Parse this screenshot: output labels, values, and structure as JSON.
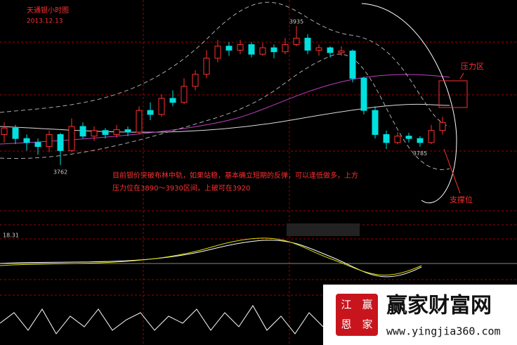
{
  "chart_data": {
    "type": "candlestick",
    "title": "天通银小时图",
    "subtitle": "2013.12.13",
    "categories": [
      null,
      null,
      null,
      null,
      null,
      null,
      null,
      null,
      null,
      null,
      null,
      null,
      null,
      null,
      null,
      null,
      null,
      null,
      null,
      null,
      null,
      null,
      null,
      null,
      null,
      null,
      null,
      null,
      null,
      null,
      null,
      null,
      null,
      null,
      null,
      null,
      null,
      null,
      null,
      null
    ],
    "candles": [
      {
        "open": 3800,
        "high": 3815,
        "low": 3790,
        "close": 3808
      },
      {
        "open": 3808,
        "high": 3812,
        "low": 3788,
        "close": 3795
      },
      {
        "open": 3795,
        "high": 3800,
        "low": 3780,
        "close": 3790
      },
      {
        "open": 3790,
        "high": 3795,
        "low": 3775,
        "close": 3785
      },
      {
        "open": 3785,
        "high": 3805,
        "low": 3778,
        "close": 3800
      },
      {
        "open": 3800,
        "high": 3802,
        "low": 3762,
        "close": 3780
      },
      {
        "open": 3780,
        "high": 3820,
        "low": 3778,
        "close": 3810
      },
      {
        "open": 3810,
        "high": 3815,
        "low": 3795,
        "close": 3798
      },
      {
        "open": 3798,
        "high": 3810,
        "low": 3792,
        "close": 3805
      },
      {
        "open": 3805,
        "high": 3808,
        "low": 3795,
        "close": 3800
      },
      {
        "open": 3800,
        "high": 3812,
        "low": 3796,
        "close": 3806
      },
      {
        "open": 3806,
        "high": 3810,
        "low": 3798,
        "close": 3803
      },
      {
        "open": 3803,
        "high": 3835,
        "low": 3800,
        "close": 3830
      },
      {
        "open": 3830,
        "high": 3840,
        "low": 3818,
        "close": 3825
      },
      {
        "open": 3825,
        "high": 3850,
        "low": 3822,
        "close": 3845
      },
      {
        "open": 3845,
        "high": 3855,
        "low": 3835,
        "close": 3840
      },
      {
        "open": 3840,
        "high": 3870,
        "low": 3838,
        "close": 3860
      },
      {
        "open": 3860,
        "high": 3880,
        "low": 3855,
        "close": 3875
      },
      {
        "open": 3875,
        "high": 3905,
        "low": 3870,
        "close": 3895
      },
      {
        "open": 3895,
        "high": 3918,
        "low": 3890,
        "close": 3910
      },
      {
        "open": 3910,
        "high": 3915,
        "low": 3898,
        "close": 3905
      },
      {
        "open": 3905,
        "high": 3918,
        "low": 3900,
        "close": 3912
      },
      {
        "open": 3912,
        "high": 3915,
        "low": 3896,
        "close": 3900
      },
      {
        "open": 3900,
        "high": 3914,
        "low": 3898,
        "close": 3908
      },
      {
        "open": 3908,
        "high": 3912,
        "low": 3895,
        "close": 3903
      },
      {
        "open": 3903,
        "high": 3920,
        "low": 3900,
        "close": 3912
      },
      {
        "open": 3912,
        "high": 3935,
        "low": 3910,
        "close": 3920
      },
      {
        "open": 3920,
        "high": 3925,
        "low": 3900,
        "close": 3905
      },
      {
        "open": 3905,
        "high": 3912,
        "low": 3898,
        "close": 3908
      },
      {
        "open": 3908,
        "high": 3910,
        "low": 3896,
        "close": 3902
      },
      {
        "open": 3902,
        "high": 3910,
        "low": 3898,
        "close": 3904
      },
      {
        "open": 3904,
        "high": 3906,
        "low": 3865,
        "close": 3870
      },
      {
        "open": 3870,
        "high": 3872,
        "low": 3825,
        "close": 3830
      },
      {
        "open": 3830,
        "high": 3835,
        "low": 3795,
        "close": 3800
      },
      {
        "open": 3800,
        "high": 3805,
        "low": 3782,
        "close": 3790
      },
      {
        "open": 3790,
        "high": 3803,
        "low": 3788,
        "close": 3798
      },
      {
        "open": 3798,
        "high": 3802,
        "low": 3790,
        "close": 3795
      },
      {
        "open": 3795,
        "high": 3798,
        "low": 3785,
        "close": 3790
      },
      {
        "open": 3790,
        "high": 3812,
        "low": 3788,
        "close": 3805
      },
      {
        "open": 3805,
        "high": 3822,
        "low": 3800,
        "close": 3815
      }
    ],
    "up_color": "#ff3030",
    "down_color": "#00e0e0",
    "ylim": [
      3740,
      3950
    ],
    "annotations": {
      "text_line1": "目前银价突破布林中轨，如果站稳，基本确立短期的反弹，可以逢低做多，上方",
      "text_line2": "压力位在3890～3930区间，上破可在3920",
      "resistance": "压力区",
      "support": "支撑位"
    },
    "indicator_label": "18.31"
  },
  "watermark": {
    "site": "赢家财富网",
    "url": "www.yingjia360.com",
    "logo": [
      "江",
      "赢",
      "恩",
      "家"
    ]
  }
}
